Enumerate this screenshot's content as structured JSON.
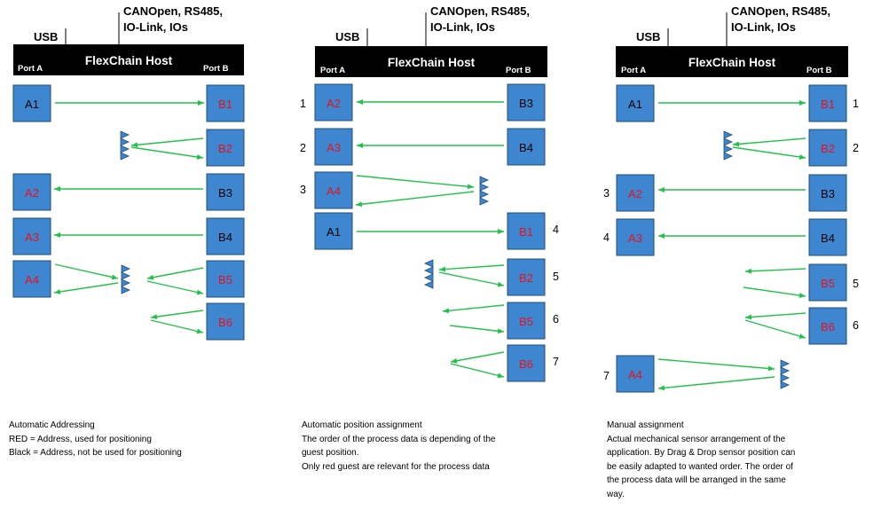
{
  "host": {
    "title": "FlexChain Host",
    "usb": "USB",
    "interfaces_line1": "CANOpen, RS485,",
    "interfaces_line2": "IO-Link, IOs",
    "port_a": "Port A",
    "port_b": "Port B"
  },
  "colors": {
    "box_fill": "#3f86d0",
    "arrow": "#22c24a",
    "address_used": "#e8101a",
    "address_unused": "#000000",
    "host_bar": "#000000"
  },
  "icons": [
    "sensor-group-icon"
  ],
  "panels": [
    {
      "id": "automatic-addressing",
      "boxes": [
        {
          "label": "A1",
          "color": "black"
        },
        {
          "label": "B1",
          "color": "red"
        },
        {
          "label": "B2",
          "color": "red"
        },
        {
          "label": "A2",
          "color": "red"
        },
        {
          "label": "B3",
          "color": "black"
        },
        {
          "label": "A3",
          "color": "red"
        },
        {
          "label": "B4",
          "color": "black"
        },
        {
          "label": "A4",
          "color": "red"
        },
        {
          "label": "B5",
          "color": "red"
        },
        {
          "label": "B6",
          "color": "red"
        }
      ],
      "order_numbers": [],
      "caption": [
        "Automatic Addressing",
        "RED = Address, used for positioning",
        "Black = Address, not be used for positioning"
      ]
    },
    {
      "id": "automatic-position-assignment",
      "boxes": [
        {
          "label": "A2",
          "color": "red"
        },
        {
          "label": "B3",
          "color": "black"
        },
        {
          "label": "A3",
          "color": "red"
        },
        {
          "label": "B4",
          "color": "black"
        },
        {
          "label": "A4",
          "color": "red"
        },
        {
          "label": "A1",
          "color": "black"
        },
        {
          "label": "B1",
          "color": "red"
        },
        {
          "label": "B2",
          "color": "red"
        },
        {
          "label": "B5",
          "color": "red"
        },
        {
          "label": "B6",
          "color": "red"
        }
      ],
      "order_numbers": [
        "1",
        "2",
        "3",
        "4",
        "5",
        "6",
        "7"
      ],
      "caption": [
        "Automatic position assignment",
        "The order of the process data is depending of the",
        "guest position.",
        "Only red guest are relevant for the process data"
      ]
    },
    {
      "id": "manual-assignment",
      "boxes": [
        {
          "label": "A1",
          "color": "black"
        },
        {
          "label": "B1",
          "color": "red"
        },
        {
          "label": "B2",
          "color": "red"
        },
        {
          "label": "A2",
          "color": "red"
        },
        {
          "label": "B3",
          "color": "black"
        },
        {
          "label": "A3",
          "color": "red"
        },
        {
          "label": "B4",
          "color": "black"
        },
        {
          "label": "B5",
          "color": "red"
        },
        {
          "label": "B6",
          "color": "red"
        },
        {
          "label": "A4",
          "color": "red"
        }
      ],
      "order_numbers": [
        "1",
        "2",
        "3",
        "4",
        "5",
        "6",
        "7"
      ],
      "caption": [
        "Manual assignment",
        "Actual mechanical sensor arrangement of the",
        "application. By Drag & Drop sensor position can",
        "be easily adapted to wanted order. The order of",
        "the process data  will be arranged in the same",
        "way."
      ]
    }
  ]
}
